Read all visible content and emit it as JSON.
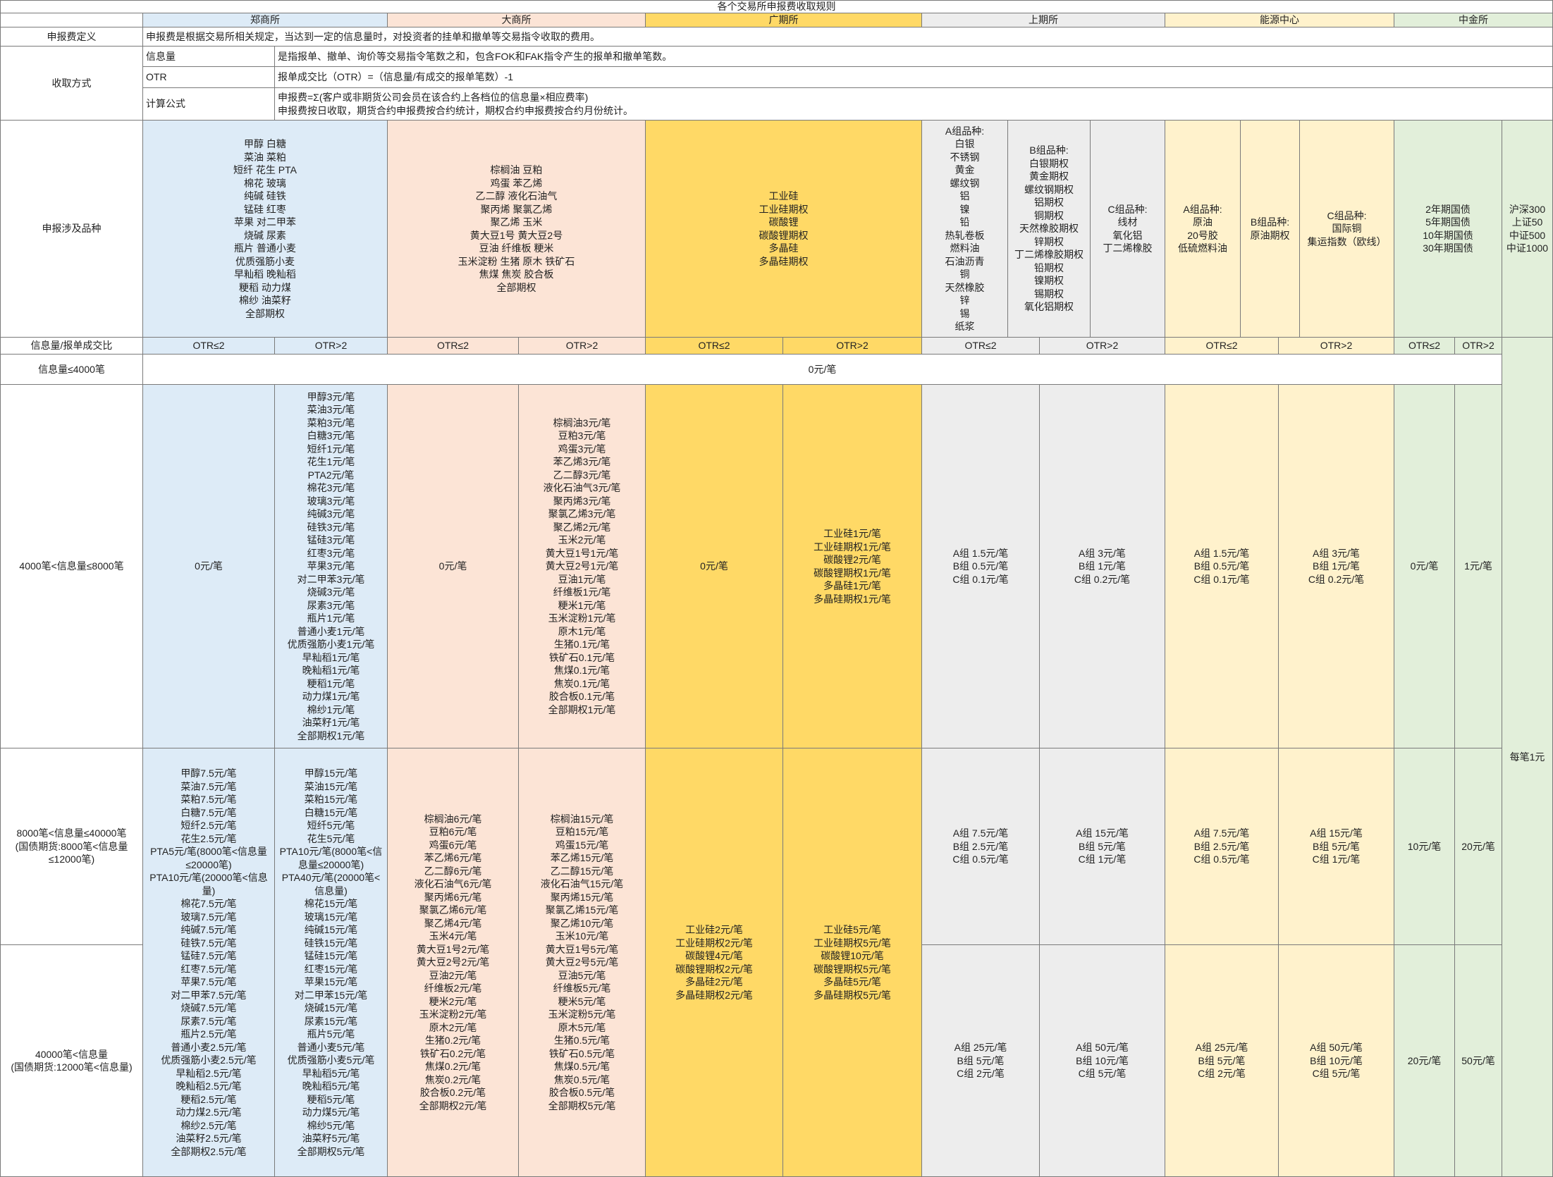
{
  "title": "各个交易所申报费收取规则",
  "exchanges": [
    "郑商所",
    "大商所",
    "广期所",
    "上期所",
    "能源中心",
    "中金所"
  ],
  "definition": {
    "label": "申报费定义",
    "text": "申报费是根据交易所相关规定，当达到一定的信息量时，对投资者的挂单和撤单等交易指令收取的费用。"
  },
  "collection": {
    "label": "收取方式",
    "items": [
      {
        "name": "信息量",
        "text": "是指报单、撤单、询价等交易指令笔数之和，包含FOK和FAK指令产生的报单和撤单笔数。"
      },
      {
        "name": "OTR",
        "text": "报单成交比（OTR）=（信息量/有成交的报单笔数）-1"
      },
      {
        "name": "计算公式",
        "text": "申报费=Σ(客户或非期货公司会员在该合约上各档位的信息量×相应费率)\n申报费按日收取，期货合约申报费按合约统计，期权合约申报费按合约月份统计。"
      }
    ]
  },
  "products": {
    "label": "申报涉及品种",
    "zce": "甲醇 白糖\n菜油 菜粕\n短纤 花生 PTA\n棉花 玻璃\n纯碱 硅铁\n锰硅 红枣\n苹果 对二甲苯\n烧碱 尿素\n瓶片 普通小麦\n优质强筋小麦\n早籼稻 晚籼稻\n粳稻 动力煤\n棉纱 油菜籽\n全部期权",
    "dce": "棕榈油 豆粕\n鸡蛋 苯乙烯\n乙二醇 液化石油气\n聚丙烯 聚氯乙烯\n聚乙烯 玉米\n黄大豆1号 黄大豆2号\n豆油 纤维板 粳米\n玉米淀粉 生猪 原木 铁矿石\n焦煤 焦炭 胶合板\n全部期权",
    "gfex": "工业硅\n工业硅期权\n碳酸锂\n碳酸锂期权\n多晶硅\n多晶硅期权",
    "shfe": [
      "A组品种:\n白银\n不锈钢\n黄金\n螺纹钢\n铝\n镍\n铅\n热轧卷板\n燃料油\n石油沥青\n铜\n天然橡胶\n锌\n锡\n纸浆",
      "B组品种:\n白银期权\n黄金期权\n螺纹钢期权\n铝期权\n铜期权\n天然橡胶期权\n锌期权\n丁二烯橡胶期权\n铅期权\n镍期权\n锡期权\n氧化铝期权",
      "C组品种:\n线材\n氧化铝\n丁二烯橡胶"
    ],
    "ine": [
      "A组品种:\n原油\n20号胶\n低硫燃料油",
      "B组品种:\n原油期权",
      "C组品种:\n国际铜\n集运指数（欧线）"
    ],
    "cffex": [
      "2年期国债\n5年期国债\n10年期国债\n30年期国债",
      "沪深300\n上证50\n中证500\n中证1000"
    ]
  },
  "ratio": {
    "label": "信息量/报单成交比",
    "low": "OTR≤2",
    "high": "OTR>2"
  },
  "cffex_options": "每笔1元",
  "tiers": [
    {
      "label": "信息量≤4000笔",
      "all": "0元/笔"
    },
    {
      "label": "4000笔<信息量≤8000笔",
      "cells": [
        "0元/笔",
        "甲醇3元/笔\n菜油3元/笔\n菜粕3元/笔\n白糖3元/笔\n短纤1元/笔\n花生1元/笔\nPTA2元/笔\n棉花3元/笔\n玻璃3元/笔\n纯碱3元/笔\n硅铁3元/笔\n锰硅3元/笔\n红枣3元/笔\n苹果3元/笔\n对二甲苯3元/笔\n烧碱3元/笔\n尿素3元/笔\n瓶片1元/笔\n普通小麦1元/笔\n优质强筋小麦1元/笔\n早籼稻1元/笔\n晚籼稻1元/笔\n粳稻1元/笔\n动力煤1元/笔\n棉纱1元/笔\n油菜籽1元/笔\n全部期权1元/笔",
        "0元/笔",
        "棕榈油3元/笔\n豆粕3元/笔\n鸡蛋3元/笔\n苯乙烯3元/笔\n乙二醇3元/笔\n液化石油气3元/笔\n聚丙烯3元/笔\n聚氯乙烯3元/笔\n聚乙烯2元/笔\n玉米2元/笔\n黄大豆1号1元/笔\n黄大豆2号1元/笔\n豆油1元/笔\n纤维板1元/笔\n粳米1元/笔\n玉米淀粉1元/笔\n原木1元/笔\n生猪0.1元/笔\n铁矿石0.1元/笔\n焦煤0.1元/笔\n焦炭0.1元/笔\n胶合板0.1元/笔\n全部期权1元/笔",
        "0元/笔",
        "工业硅1元/笔\n工业硅期权1元/笔\n碳酸锂2元/笔\n碳酸锂期权1元/笔\n多晶硅1元/笔\n多晶硅期权1元/笔",
        "A组 1.5元/笔\nB组 0.5元/笔\nC组 0.1元/笔",
        "A组 3元/笔\nB组 1元/笔\nC组 0.2元/笔",
        "A组 1.5元/笔\nB组 0.5元/笔\nC组 0.1元/笔",
        "A组 3元/笔\nB组 1元/笔\nC组 0.2元/笔",
        "0元/笔",
        "1元/笔"
      ]
    },
    {
      "label": "8000笔<信息量≤40000笔\n(国债期货:8000笔<信息量≤12000笔)",
      "merged": [
        "甲醇7.5元/笔\n菜油7.5元/笔\n菜粕7.5元/笔\n白糖7.5元/笔\n短纤2.5元/笔\n花生2.5元/笔\nPTA5元/笔(8000笔<信息量≤20000笔)\nPTA10元/笔(20000笔<信息量)\n棉花7.5元/笔\n玻璃7.5元/笔\n纯碱7.5元/笔\n硅铁7.5元/笔\n锰硅7.5元/笔\n红枣7.5元/笔\n苹果7.5元/笔\n对二甲苯7.5元/笔\n烧碱7.5元/笔\n尿素7.5元/笔\n瓶片2.5元/笔\n普通小麦2.5元/笔\n优质强筋小麦2.5元/笔\n早籼稻2.5元/笔\n晚籼稻2.5元/笔\n粳稻2.5元/笔\n动力煤2.5元/笔\n棉纱2.5元/笔\n油菜籽2.5元/笔\n全部期权2.5元/笔",
        "甲醇15元/笔\n菜油15元/笔\n菜粕15元/笔\n白糖15元/笔\n短纤5元/笔\n花生5元/笔\nPTA10元/笔(8000笔<信息量≤20000笔)\nPTA40元/笔(20000笔<信息量)\n棉花15元/笔\n玻璃15元/笔\n纯碱15元/笔\n硅铁15元/笔\n锰硅15元/笔\n红枣15元/笔\n苹果15元/笔\n对二甲苯15元/笔\n烧碱15元/笔\n尿素15元/笔\n瓶片5元/笔\n普通小麦5元/笔\n优质强筋小麦5元/笔\n早籼稻5元/笔\n晚籼稻5元/笔\n粳稻5元/笔\n动力煤5元/笔\n棉纱5元/笔\n油菜籽5元/笔\n全部期权5元/笔",
        "棕榈油6元/笔\n豆粕6元/笔\n鸡蛋6元/笔\n苯乙烯6元/笔\n乙二醇6元/笔\n液化石油气6元/笔\n聚丙烯6元/笔\n聚氯乙烯6元/笔\n聚乙烯4元/笔\n玉米4元/笔\n黄大豆1号2元/笔\n黄大豆2号2元/笔\n豆油2元/笔\n纤维板2元/笔\n粳米2元/笔\n玉米淀粉2元/笔\n原木2元/笔\n生猪0.2元/笔\n铁矿石0.2元/笔\n焦煤0.2元/笔\n焦炭0.2元/笔\n胶合板0.2元/笔\n全部期权2元/笔",
        "棕榈油15元/笔\n豆粕15元/笔\n鸡蛋15元/笔\n苯乙烯15元/笔\n乙二醇15元/笔\n液化石油气15元/笔\n聚丙烯15元/笔\n聚氯乙烯15元/笔\n聚乙烯10元/笔\n玉米10元/笔\n黄大豆1号5元/笔\n黄大豆2号5元/笔\n豆油5元/笔\n纤维板5元/笔\n粳米5元/笔\n玉米淀粉5元/笔\n原木5元/笔\n生猪0.5元/笔\n铁矿石0.5元/笔\n焦煤0.5元/笔\n焦炭0.5元/笔\n胶合板0.5元/笔\n全部期权5元/笔",
        "工业硅2元/笔\n工业硅期权2元/笔\n碳酸锂4元/笔\n碳酸锂期权2元/笔\n多晶硅2元/笔\n多晶硅期权2元/笔",
        "工业硅5元/笔\n工业硅期权5元/笔\n碳酸锂10元/笔\n碳酸锂期权5元/笔\n多晶硅5元/笔\n多晶硅期权5元/笔"
      ],
      "cells": [
        "A组 7.5元/笔\nB组 2.5元/笔\nC组 0.5元/笔",
        "A组 15元/笔\nB组 5元/笔\nC组 1元/笔",
        "A组 7.5元/笔\nB组 2.5元/笔\nC组 0.5元/笔",
        "A组 15元/笔\nB组 5元/笔\nC组 1元/笔",
        "10元/笔",
        "20元/笔"
      ]
    },
    {
      "label": "40000笔<信息量\n(国债期货:12000笔<信息量)",
      "cells": [
        "A组 25元/笔\nB组 5元/笔\nC组 2元/笔",
        "A组 50元/笔\nB组 10元/笔\nC组 5元/笔",
        "A组 25元/笔\nB组 5元/笔\nC组 2元/笔",
        "A组 50元/笔\nB组 10元/笔\nC组 5元/笔",
        "20元/笔",
        "50元/笔"
      ]
    }
  ]
}
